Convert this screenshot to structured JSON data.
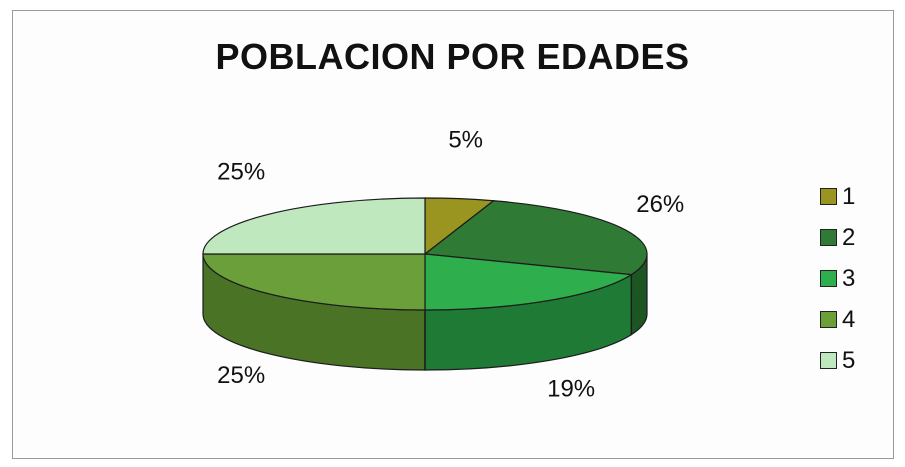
{
  "chart_data": {
    "type": "pie",
    "title": "POBLACION POR EDADES",
    "categories": [
      "1",
      "2",
      "3",
      "4",
      "5"
    ],
    "values": [
      5,
      26,
      19,
      25,
      25
    ],
    "labels": [
      "5%",
      "26%",
      "19%",
      "25%",
      "25%"
    ],
    "colors": [
      "#9a9420",
      "#2f7a35",
      "#2eae4c",
      "#6a9f3a",
      "#bfe8be"
    ],
    "side_colors": [
      "#6e6a14",
      "#1d5523",
      "#1e7a34",
      "#4a7326",
      "#8fb98f"
    ],
    "legend": {
      "position": "right",
      "entries": [
        "1",
        "2",
        "3",
        "4",
        "5"
      ]
    },
    "three_d": true
  }
}
